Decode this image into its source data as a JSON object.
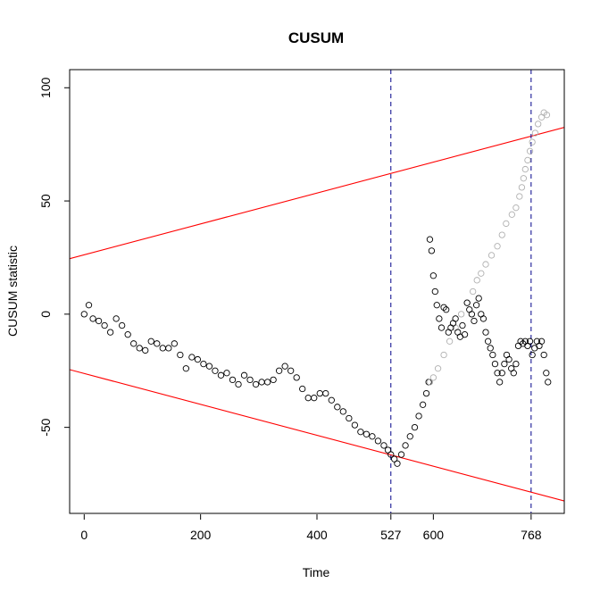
{
  "chart_data": {
    "type": "scatter",
    "title": "CUSUM",
    "xlabel": "Time",
    "ylabel": "CUSUM statistic",
    "xlim": [
      -25,
      825
    ],
    "ylim": [
      -88,
      108
    ],
    "x_ticks": [
      0,
      200,
      400,
      527,
      600,
      768
    ],
    "y_ticks": [
      -50,
      0,
      50,
      100
    ],
    "vertical_lines": [
      527,
      768
    ],
    "colors": {
      "points": "#000000",
      "points_gray": "#b0b0b0",
      "boundary": "#ff0000",
      "vline": "#00008b",
      "frame": "#000000"
    },
    "boundaries": [
      {
        "x": [
          -25,
          825
        ],
        "y": [
          24.5,
          82.5
        ]
      },
      {
        "x": [
          -25,
          825
        ],
        "y": [
          -24.5,
          -82.5
        ]
      }
    ],
    "series": [
      {
        "points": [
          [
            0,
            0
          ],
          [
            8,
            4
          ],
          [
            15,
            -2
          ],
          [
            25,
            -3
          ],
          [
            35,
            -5
          ],
          [
            45,
            -8
          ],
          [
            55,
            -2
          ],
          [
            65,
            -5
          ],
          [
            75,
            -9
          ],
          [
            85,
            -13
          ],
          [
            95,
            -15
          ],
          [
            105,
            -16
          ],
          [
            115,
            -12
          ],
          [
            125,
            -13
          ],
          [
            135,
            -15
          ],
          [
            145,
            -15
          ],
          [
            155,
            -13
          ],
          [
            165,
            -18
          ],
          [
            175,
            -24
          ],
          [
            185,
            -19
          ],
          [
            195,
            -20
          ],
          [
            205,
            -22
          ],
          [
            215,
            -23
          ],
          [
            225,
            -25
          ],
          [
            235,
            -27
          ],
          [
            245,
            -26
          ],
          [
            255,
            -29
          ],
          [
            265,
            -31
          ],
          [
            275,
            -27
          ],
          [
            285,
            -29
          ],
          [
            295,
            -31
          ],
          [
            305,
            -30
          ],
          [
            315,
            -30
          ],
          [
            325,
            -29
          ],
          [
            335,
            -25
          ],
          [
            345,
            -23
          ],
          [
            355,
            -25
          ],
          [
            365,
            -28
          ],
          [
            375,
            -33
          ],
          [
            385,
            -37
          ],
          [
            395,
            -37
          ],
          [
            405,
            -35
          ],
          [
            415,
            -35
          ],
          [
            425,
            -38
          ],
          [
            435,
            -41
          ],
          [
            445,
            -43
          ],
          [
            455,
            -46
          ],
          [
            465,
            -49
          ],
          [
            475,
            -52
          ],
          [
            485,
            -53
          ],
          [
            495,
            -54
          ],
          [
            505,
            -56
          ],
          [
            515,
            -58
          ],
          [
            522,
            -60
          ],
          [
            527,
            -62
          ],
          [
            533,
            -64
          ],
          [
            538,
            -66
          ],
          [
            545,
            -62
          ],
          [
            552,
            -58
          ],
          [
            560,
            -54
          ],
          [
            568,
            -50
          ],
          [
            575,
            -45
          ],
          [
            582,
            -40
          ],
          [
            588,
            -35
          ],
          [
            592,
            -30
          ]
        ]
      },
      {
        "points": [
          [
            594,
            -30
          ],
          [
            600,
            -28
          ],
          [
            608,
            -24
          ],
          [
            618,
            -18
          ],
          [
            628,
            -12
          ],
          [
            638,
            -6
          ],
          [
            648,
            0
          ],
          [
            658,
            5
          ],
          [
            668,
            10
          ],
          [
            675,
            15
          ],
          [
            682,
            18
          ],
          [
            690,
            22
          ],
          [
            700,
            26
          ],
          [
            710,
            30
          ],
          [
            718,
            35
          ],
          [
            725,
            40
          ],
          [
            735,
            44
          ],
          [
            742,
            47
          ],
          [
            748,
            52
          ],
          [
            752,
            56
          ],
          [
            755,
            60
          ],
          [
            758,
            64
          ],
          [
            762,
            68
          ],
          [
            766,
            72
          ],
          [
            770,
            76
          ],
          [
            775,
            80
          ],
          [
            780,
            84
          ],
          [
            786,
            87
          ],
          [
            790,
            89
          ],
          [
            795,
            88
          ]
        ]
      },
      {
        "points": [
          [
            594,
            33
          ],
          [
            597,
            28
          ],
          [
            600,
            17
          ],
          [
            603,
            10
          ],
          [
            606,
            4
          ],
          [
            610,
            -2
          ],
          [
            614,
            -6
          ],
          [
            618,
            3
          ],
          [
            622,
            2
          ],
          [
            626,
            -8
          ],
          [
            630,
            -6
          ],
          [
            634,
            -4
          ],
          [
            638,
            -2
          ],
          [
            642,
            -8
          ],
          [
            646,
            -10
          ],
          [
            650,
            -5
          ],
          [
            654,
            -9
          ],
          [
            658,
            5
          ],
          [
            662,
            2
          ],
          [
            666,
            0
          ],
          [
            670,
            -3
          ],
          [
            674,
            4
          ],
          [
            678,
            7
          ],
          [
            682,
            0
          ],
          [
            686,
            -2
          ],
          [
            690,
            -8
          ],
          [
            694,
            -12
          ],
          [
            698,
            -15
          ],
          [
            702,
            -18
          ],
          [
            706,
            -22
          ],
          [
            710,
            -26
          ],
          [
            714,
            -30
          ],
          [
            718,
            -26
          ],
          [
            722,
            -22
          ],
          [
            726,
            -18
          ],
          [
            730,
            -20
          ],
          [
            734,
            -24
          ],
          [
            738,
            -26
          ],
          [
            742,
            -22
          ],
          [
            746,
            -14
          ],
          [
            750,
            -12
          ],
          [
            754,
            -13
          ],
          [
            758,
            -12
          ],
          [
            762,
            -14
          ],
          [
            766,
            -12
          ],
          [
            770,
            -18
          ],
          [
            774,
            -15
          ],
          [
            778,
            -12
          ],
          [
            782,
            -14
          ],
          [
            786,
            -12
          ],
          [
            790,
            -18
          ],
          [
            794,
            -26
          ],
          [
            797,
            -30
          ]
        ]
      }
    ]
  }
}
